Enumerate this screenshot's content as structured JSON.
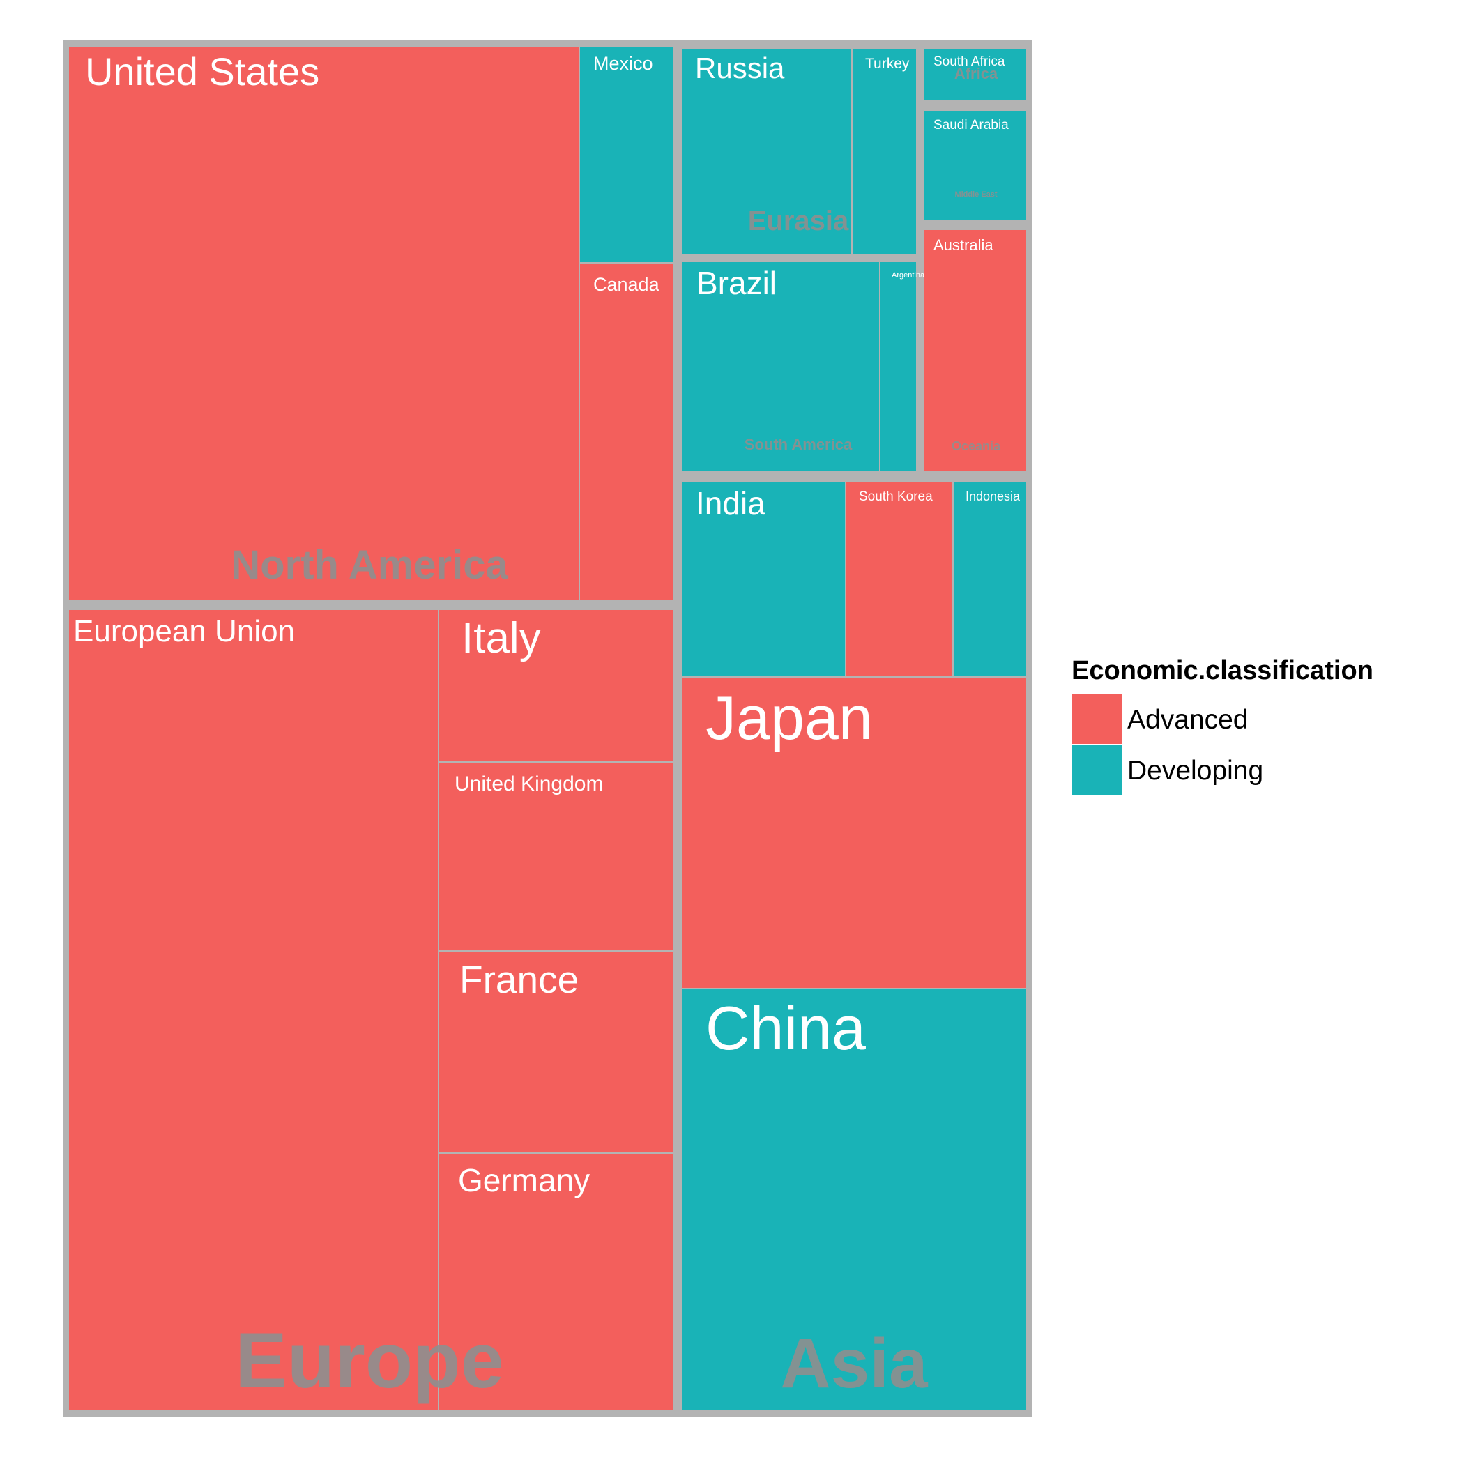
{
  "chart_data": {
    "type": "treemap",
    "title": "",
    "legend": {
      "title": "Economic.classification",
      "placement": "right",
      "entries": [
        {
          "name": "Advanced",
          "color": "#f35f5c"
        },
        {
          "name": "Developing",
          "color": "#19b3b7"
        }
      ]
    },
    "colors": {
      "Advanced": "#f35f5c",
      "Developing": "#19b3b7",
      "border": "#b3b3b3",
      "group_label": "#8f8f8f"
    },
    "groups": [
      {
        "name": "North America",
        "leaves": [
          {
            "name": "United States",
            "class": "Advanced"
          },
          {
            "name": "Mexico",
            "class": "Developing"
          },
          {
            "name": "Canada",
            "class": "Advanced"
          }
        ]
      },
      {
        "name": "Europe",
        "leaves": [
          {
            "name": "European Union",
            "class": "Advanced"
          },
          {
            "name": "Italy",
            "class": "Advanced"
          },
          {
            "name": "United Kingdom",
            "class": "Advanced"
          },
          {
            "name": "France",
            "class": "Advanced"
          },
          {
            "name": "Germany",
            "class": "Advanced"
          }
        ]
      },
      {
        "name": "Eurasia",
        "leaves": [
          {
            "name": "Russia",
            "class": "Developing"
          },
          {
            "name": "Turkey",
            "class": "Developing"
          }
        ]
      },
      {
        "name": "Africa",
        "leaves": [
          {
            "name": "South Africa",
            "class": "Developing"
          }
        ]
      },
      {
        "name": "Middle East",
        "leaves": [
          {
            "name": "Saudi Arabia",
            "class": "Developing"
          }
        ]
      },
      {
        "name": "South America",
        "leaves": [
          {
            "name": "Brazil",
            "class": "Developing"
          },
          {
            "name": "Argentina",
            "class": "Developing"
          }
        ]
      },
      {
        "name": "Oceania",
        "leaves": [
          {
            "name": "Australia",
            "class": "Advanced"
          }
        ]
      },
      {
        "name": "Asia",
        "leaves": [
          {
            "name": "India",
            "class": "Developing"
          },
          {
            "name": "South Korea",
            "class": "Advanced"
          },
          {
            "name": "Indonesia",
            "class": "Developing"
          },
          {
            "name": "Japan",
            "class": "Advanced"
          },
          {
            "name": "China",
            "class": "Developing"
          }
        ]
      }
    ]
  }
}
